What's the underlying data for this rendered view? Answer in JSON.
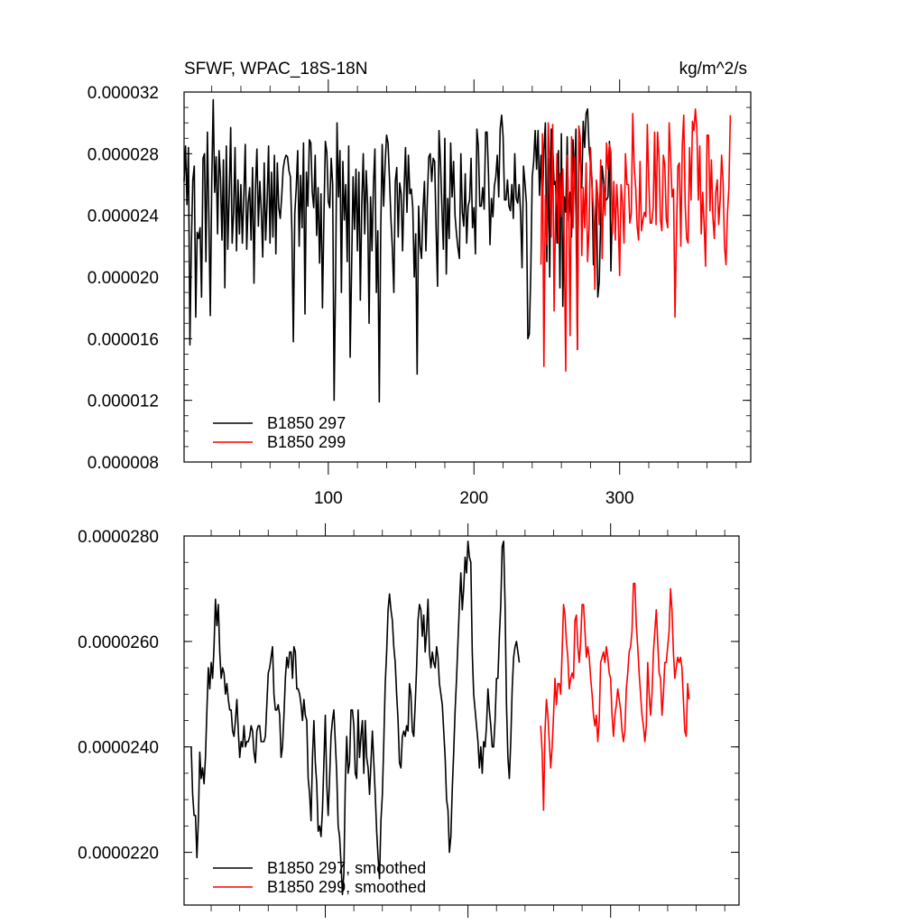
{
  "figure": {
    "title": "SFWF, WPAC_18S-18N",
    "units": "kg/m^2/s"
  },
  "chart_data": [
    {
      "type": "line",
      "title": "SFWF, WPAC_18S-18N",
      "units": "kg/m^2/s",
      "xlim": [
        1,
        390
      ],
      "ylim": [
        8e-06,
        3.2e-05
      ],
      "x_ticks": [
        100,
        200,
        300
      ],
      "x_tick_labels": [
        "100",
        "200",
        "300"
      ],
      "y_ticks": [
        8e-06,
        1.2e-05,
        1.6e-05,
        2e-05,
        2.4e-05,
        2.8e-05,
        3.2e-05
      ],
      "y_tick_labels": [
        "0.000008",
        "0.000012",
        "0.000016",
        "0.000020",
        "0.000024",
        "0.000028",
        "0.000032"
      ],
      "legend_position": "bottom-left",
      "series": [
        {
          "name": "B1850 297",
          "color": "#000000",
          "x_start": 1,
          "values": [
            2.62e-05,
            2.85e-05,
            2.47e-05,
            2.84e-05,
            1.56e-05,
            2.21e-05,
            2.63e-05,
            2.72e-05,
            1.74e-05,
            2.29e-05,
            2.25e-05,
            2.32e-05,
            1.87e-05,
            2.77e-05,
            2.8e-05,
            2.1e-05,
            2.94e-05,
            2.4e-05,
            1.75e-05,
            2.62e-05,
            3.15e-05,
            2.55e-05,
            2.78e-05,
            2.28e-05,
            2.82e-05,
            2.64e-05,
            2.24e-05,
            2.76e-05,
            1.93e-05,
            2.85e-05,
            2.18e-05,
            2.54e-05,
            2.97e-05,
            2.22e-05,
            2.42e-05,
            2.84e-05,
            2.17e-05,
            2.63e-05,
            2.28e-05,
            2.6e-05,
            2.22e-05,
            2.52e-05,
            2.86e-05,
            2.18e-05,
            2.48e-05,
            2.58e-05,
            2.24e-05,
            2.71e-05,
            1.96e-05,
            2.58e-05,
            2.83e-05,
            2.33e-05,
            2.62e-05,
            2.43e-05,
            2.13e-05,
            2.74e-05,
            2.24e-05,
            2.49e-05,
            2.85e-05,
            2.22e-05,
            2.68e-05,
            2.26e-05,
            2.79e-05,
            2.15e-05,
            2.74e-05,
            2.45e-05,
            2.38e-05,
            2.52e-05,
            2.7e-05,
            2.76e-05,
            2.79e-05,
            2.78e-05,
            2.69e-05,
            2.65e-05,
            2.3e-05,
            1.58e-05,
            2.41e-05,
            2.58e-05,
            2.82e-05,
            2.2e-05,
            2.66e-05,
            2.32e-05,
            2.87e-05,
            1.76e-05,
            2.68e-05,
            2.46e-05,
            2.89e-05,
            2.87e-05,
            2.55e-05,
            2.45e-05,
            2.79e-05,
            2.27e-05,
            2.58e-05,
            2.09e-05,
            2.54e-05,
            1.8e-05,
            2.39e-05,
            2.88e-05,
            2.81e-05,
            2.49e-05,
            2.45e-05,
            2.77e-05,
            2.6e-05,
            1.2e-05,
            1.98e-05,
            3e-05,
            2.52e-05,
            2.82e-05,
            1.9e-05,
            2.75e-05,
            2.37e-05,
            2.6e-05,
            2.1e-05,
            2.85e-05,
            1.48e-05,
            2.06e-05,
            2.65e-05,
            2.31e-05,
            2.7e-05,
            2.17e-05,
            2.68e-05,
            1.85e-05,
            2.48e-05,
            2.8e-05,
            2.28e-05,
            2.69e-05,
            2.47e-05,
            1.7e-05,
            2.52e-05,
            2.17e-05,
            2.6e-05,
            2.83e-05,
            1.9e-05,
            2.3e-05,
            1.19e-05,
            2.3e-05,
            2.86e-05,
            2.46e-05,
            2.73e-05,
            2.92e-05,
            2.87e-05,
            2.64e-05,
            2.38e-05,
            2.18e-05,
            1.9e-05,
            2.62e-05,
            2.71e-05,
            2.26e-05,
            2.61e-05,
            2.54e-05,
            2.17e-05,
            2.56e-05,
            2.84e-05,
            2.42e-05,
            2.79e-05,
            2.54e-05,
            2.57e-05,
            2.45e-05,
            2e-05,
            2.28e-05,
            1.37e-05,
            2.46e-05,
            2.2e-05,
            2.12e-05,
            2.43e-05,
            2.62e-05,
            2.17e-05,
            2.51e-05,
            2.78e-05,
            2.8e-05,
            2.62e-05,
            2.77e-05,
            2.75e-05,
            2.32e-05,
            1.94e-05,
            2.95e-05,
            2.75e-05,
            2.45e-05,
            2.18e-05,
            2.9e-05,
            2.02e-05,
            2.51e-05,
            2.25e-05,
            2.87e-05,
            2.52e-05,
            2.75e-05,
            2.4e-05,
            2.28e-05,
            2.19e-05,
            2.12e-05,
            2.8e-05,
            2.42e-05,
            2.33e-05,
            2.67e-05,
            2.22e-05,
            2.46e-05,
            2.5e-05,
            2.77e-05,
            2.32e-05,
            2.45e-05,
            2.15e-05,
            2.96e-05,
            2.85e-05,
            2.46e-05,
            2.46e-05,
            2.58e-05,
            2.44e-05,
            2.94e-05,
            2.94e-05,
            2.66e-05,
            2.21e-05,
            2.51e-05,
            2.39e-05,
            2.59e-05,
            2.65e-05,
            2.79e-05,
            2.52e-05,
            2.96e-05,
            3.05e-05,
            2.91e-05,
            2.5e-05,
            2.5e-05,
            2.63e-05,
            2.46e-05,
            2.43e-05,
            2.6e-05,
            2.38e-05,
            2.8e-05,
            2.51e-05,
            2.48e-05,
            2.6e-05,
            2.41e-05,
            2.06e-05,
            2.72e-05,
            2.61e-05,
            2.48e-05,
            1.6e-05,
            1.63e-05,
            2.03e-05,
            2.65e-05,
            2.75e-05,
            2.95e-05,
            2.7e-05,
            2.95e-05,
            2.53e-05,
            2.79e-05,
            2.45e-05,
            2.82e-05,
            3e-05,
            2.1e-05,
            2.77e-05,
            2e-05,
            2.96e-05,
            2.87e-05,
            2.6e-05,
            2.62e-05,
            2.22e-05,
            2.82e-05,
            1.93e-05,
            2.93e-05,
            1.81e-05,
            2.52e-05,
            2.42e-05,
            2.91e-05,
            2.36e-05,
            2.55e-05,
            2.26e-05,
            2.89e-05,
            2.61e-05,
            2.96e-05,
            1.53e-05,
            2.88e-05,
            2.75e-05,
            2.58e-05,
            3.01e-05,
            2.84e-05,
            3.06e-05,
            3.09e-05,
            2.84e-05,
            2.73e-05,
            2.64e-05,
            2.08e-05,
            2.32e-05,
            2.56e-05,
            1.87e-05,
            1.97e-05,
            2.38e-05,
            2.72e-05,
            2.62e-05,
            2.51e-05,
            2.5e-05,
            2.52e-05,
            2.88e-05,
            2.04e-05,
            2.46e-05,
            2.49e-05
          ]
        },
        {
          "name": "B1850 299",
          "color": "#ff0000",
          "x_start": 246,
          "values": [
            2.08e-05,
            2.93e-05,
            1.42e-05,
            2.53e-05,
            2.21e-05,
            3e-05,
            2.73e-05,
            2.26e-05,
            2.99e-05,
            1.78e-05,
            2.39e-05,
            2.8e-05,
            2.22e-05,
            2.67e-05,
            2.39e-05,
            2.7e-05,
            2.21e-05,
            1.39e-05,
            2.79e-05,
            2.47e-05,
            1.62e-05,
            2.91e-05,
            2.32e-05,
            2.78e-05,
            2.39e-05,
            1.53e-05,
            2.98e-05,
            2.9e-05,
            2.14e-05,
            2.58e-05,
            2.32e-05,
            2.74e-05,
            2.1e-05,
            2.31e-05,
            2.84e-05,
            2.59e-05,
            2.44e-05,
            1.92e-05,
            2.63e-05,
            2.53e-05,
            2.34e-05,
            2.76e-05,
            2.12e-05,
            2.6e-05,
            2.4e-05,
            2.87e-05,
            2.7e-05,
            2.86e-05,
            2.81e-05,
            2.28e-05,
            2.62e-05,
            2.24e-05,
            2.6e-05,
            2.4e-05,
            2.01e-05,
            2.6e-05,
            2.48e-05,
            2.22e-05,
            2.8e-05,
            2.6e-05,
            2.6e-05,
            2.35e-05,
            2.41e-05,
            3.06e-05,
            2.71e-05,
            2.58e-05,
            2.33e-05,
            2.24e-05,
            2.75e-05,
            2.3e-05,
            2.37e-05,
            2.42e-05,
            2.39e-05,
            2.99e-05,
            2.62e-05,
            2.35e-05,
            2.35e-05,
            2.44e-05,
            2.94e-05,
            2.34e-05,
            2.94e-05,
            2.78e-05,
            2.37e-05,
            2.3e-05,
            2.79e-05,
            2.73e-05,
            2.38e-05,
            2.32e-05,
            3e-05,
            2.77e-05,
            2.52e-05,
            2.57e-05,
            1.74e-05,
            2.28e-05,
            2.72e-05,
            2.74e-05,
            2.2e-05,
            2.85e-05,
            3.05e-05,
            2.47e-05,
            2.25e-05,
            2.22e-05,
            2.84e-05,
            2.5e-05,
            3.01e-05,
            2.95e-05,
            3.09e-05,
            2.96e-05,
            2.5e-05,
            2.85e-05,
            2.28e-05,
            2.55e-05,
            2.34e-05,
            2.07e-05,
            2.92e-05,
            2.92e-05,
            2.43e-05,
            2.76e-05,
            2.39e-05,
            2.25e-05,
            2.55e-05,
            2.63e-05,
            2.34e-05,
            2.5e-05,
            2.79e-05,
            2.62e-05,
            2.2e-05,
            2.08e-05,
            2.41e-05,
            2.58e-05,
            3.05e-05
          ]
        }
      ]
    },
    {
      "type": "line",
      "xlim": [
        1,
        390
      ],
      "ylim": [
        2.1e-05,
        2.8e-05
      ],
      "x_ticks": [
        100,
        200,
        300
      ],
      "y_ticks": [
        2.2e-05,
        2.4e-05,
        2.6e-05,
        2.8e-05
      ],
      "y_tick_labels": [
        "0.0000220",
        "0.0000240",
        "0.0000260",
        "0.0000280"
      ],
      "legend_position": "bottom-left",
      "series": [
        {
          "name": "B1850 297, smoothed",
          "color": "#000000",
          "x_start": 6,
          "values": [
            2.4e-05,
            2.31e-05,
            2.27e-05,
            2.27e-05,
            2.19e-05,
            2.26e-05,
            2.39e-05,
            2.34e-05,
            2.36e-05,
            2.33e-05,
            2.38e-05,
            2.47e-05,
            2.55e-05,
            2.51e-05,
            2.56e-05,
            2.53e-05,
            2.59e-05,
            2.68e-05,
            2.63e-05,
            2.67e-05,
            2.58e-05,
            2.53e-05,
            2.55e-05,
            2.54e-05,
            2.5e-05,
            2.52e-05,
            2.49e-05,
            2.47e-05,
            2.47e-05,
            2.43e-05,
            2.42e-05,
            2.45e-05,
            2.49e-05,
            2.43e-05,
            2.38e-05,
            2.41e-05,
            2.4e-05,
            2.44e-05,
            2.4e-05,
            2.41e-05,
            2.41e-05,
            2.42e-05,
            2.44e-05,
            2.43e-05,
            2.39e-05,
            2.37e-05,
            2.43e-05,
            2.44e-05,
            2.44e-05,
            2.41e-05,
            2.41e-05,
            2.41e-05,
            2.42e-05,
            2.48e-05,
            2.54e-05,
            2.55e-05,
            2.57e-05,
            2.59e-05,
            2.5e-05,
            2.47e-05,
            2.47e-05,
            2.48e-05,
            2.46e-05,
            2.38e-05,
            2.4e-05,
            2.46e-05,
            2.53e-05,
            2.57e-05,
            2.55e-05,
            2.58e-05,
            2.58e-05,
            2.53e-05,
            2.59e-05,
            2.58e-05,
            2.51e-05,
            2.51e-05,
            2.5e-05,
            2.48e-05,
            2.45e-05,
            2.49e-05,
            2.46e-05,
            2.45e-05,
            2.34e-05,
            2.31e-05,
            2.26e-05,
            2.38e-05,
            2.45e-05,
            2.37e-05,
            2.33e-05,
            2.24e-05,
            2.25e-05,
            2.23e-05,
            2.28e-05,
            2.37e-05,
            2.46e-05,
            2.33e-05,
            2.27e-05,
            2.34e-05,
            2.42e-05,
            2.45e-05,
            2.47e-05,
            2.41e-05,
            2.35e-05,
            2.25e-05,
            2.23e-05,
            2.18e-05,
            2.12e-05,
            2.16e-05,
            2.33e-05,
            2.42e-05,
            2.35e-05,
            2.37e-05,
            2.47e-05,
            2.47e-05,
            2.44e-05,
            2.35e-05,
            2.34e-05,
            2.47e-05,
            2.38e-05,
            2.42e-05,
            2.45e-05,
            2.35e-05,
            2.45e-05,
            2.38e-05,
            2.36e-05,
            2.31e-05,
            2.37e-05,
            2.43e-05,
            2.37e-05,
            2.31e-05,
            2.24e-05,
            2.19e-05,
            2.15e-05,
            2.26e-05,
            2.31e-05,
            2.41e-05,
            2.52e-05,
            2.58e-05,
            2.66e-05,
            2.69e-05,
            2.66e-05,
            2.64e-05,
            2.59e-05,
            2.56e-05,
            2.5e-05,
            2.45e-05,
            2.37e-05,
            2.36e-05,
            2.42e-05,
            2.43e-05,
            2.42e-05,
            2.44e-05,
            2.43e-05,
            2.52e-05,
            2.5e-05,
            2.43e-05,
            2.42e-05,
            2.48e-05,
            2.55e-05,
            2.64e-05,
            2.67e-05,
            2.66e-05,
            2.61e-05,
            2.65e-05,
            2.58e-05,
            2.62e-05,
            2.68e-05,
            2.58e-05,
            2.55e-05,
            2.58e-05,
            2.56e-05,
            2.55e-05,
            2.59e-05,
            2.57e-05,
            2.52e-05,
            2.5e-05,
            2.48e-05,
            2.43e-05,
            2.38e-05,
            2.3e-05,
            2.28e-05,
            2.2e-05,
            2.23e-05,
            2.32e-05,
            2.39e-05,
            2.47e-05,
            2.53e-05,
            2.6e-05,
            2.67e-05,
            2.73e-05,
            2.66e-05,
            2.7e-05,
            2.76e-05,
            2.73e-05,
            2.79e-05,
            2.76e-05,
            2.75e-05,
            2.58e-05,
            2.5e-05,
            2.47e-05,
            2.44e-05,
            2.41e-05,
            2.36e-05,
            2.4e-05,
            2.35e-05,
            2.41e-05,
            2.4e-05,
            2.44e-05,
            2.51e-05,
            2.47e-05,
            2.44e-05,
            2.4e-05,
            2.4e-05,
            2.45e-05,
            2.53e-05,
            2.53e-05,
            2.61e-05,
            2.67e-05,
            2.78e-05,
            2.79e-05,
            2.67e-05,
            2.48e-05,
            2.38e-05,
            2.34e-05,
            2.41e-05,
            2.51e-05,
            2.57e-05,
            2.59e-05,
            2.6e-05,
            2.58e-05,
            2.56e-05
          ]
        },
        {
          "name": "B1850 299, smoothed",
          "color": "#ff0000",
          "x_start": 251,
          "values": [
            2.44e-05,
            2.39e-05,
            2.28e-05,
            2.43e-05,
            2.49e-05,
            2.46e-05,
            2.41e-05,
            2.36e-05,
            2.4e-05,
            2.46e-05,
            2.53e-05,
            2.48e-05,
            2.52e-05,
            2.52e-05,
            2.5e-05,
            2.58e-05,
            2.67e-05,
            2.65e-05,
            2.6e-05,
            2.57e-05,
            2.51e-05,
            2.53e-05,
            2.54e-05,
            2.53e-05,
            2.64e-05,
            2.65e-05,
            2.59e-05,
            2.56e-05,
            2.6e-05,
            2.67e-05,
            2.67e-05,
            2.62e-05,
            2.57e-05,
            2.59e-05,
            2.57e-05,
            2.53e-05,
            2.5e-05,
            2.46e-05,
            2.44e-05,
            2.46e-05,
            2.41e-05,
            2.45e-05,
            2.56e-05,
            2.57e-05,
            2.58e-05,
            2.56e-05,
            2.59e-05,
            2.57e-05,
            2.54e-05,
            2.53e-05,
            2.46e-05,
            2.42e-05,
            2.46e-05,
            2.48e-05,
            2.51e-05,
            2.49e-05,
            2.47e-05,
            2.43e-05,
            2.41e-05,
            2.43e-05,
            2.51e-05,
            2.54e-05,
            2.58e-05,
            2.59e-05,
            2.62e-05,
            2.71e-05,
            2.71e-05,
            2.63e-05,
            2.59e-05,
            2.54e-05,
            2.5e-05,
            2.46e-05,
            2.44e-05,
            2.41e-05,
            2.44e-05,
            2.56e-05,
            2.5e-05,
            2.46e-05,
            2.5e-05,
            2.58e-05,
            2.62e-05,
            2.66e-05,
            2.6e-05,
            2.54e-05,
            2.53e-05,
            2.46e-05,
            2.5e-05,
            2.56e-05,
            2.56e-05,
            2.59e-05,
            2.62e-05,
            2.7e-05,
            2.66e-05,
            2.58e-05,
            2.53e-05,
            2.55e-05,
            2.57e-05,
            2.56e-05,
            2.57e-05,
            2.55e-05,
            2.49e-05,
            2.43e-05,
            2.42e-05,
            2.52e-05,
            2.49e-05
          ]
        }
      ]
    }
  ]
}
